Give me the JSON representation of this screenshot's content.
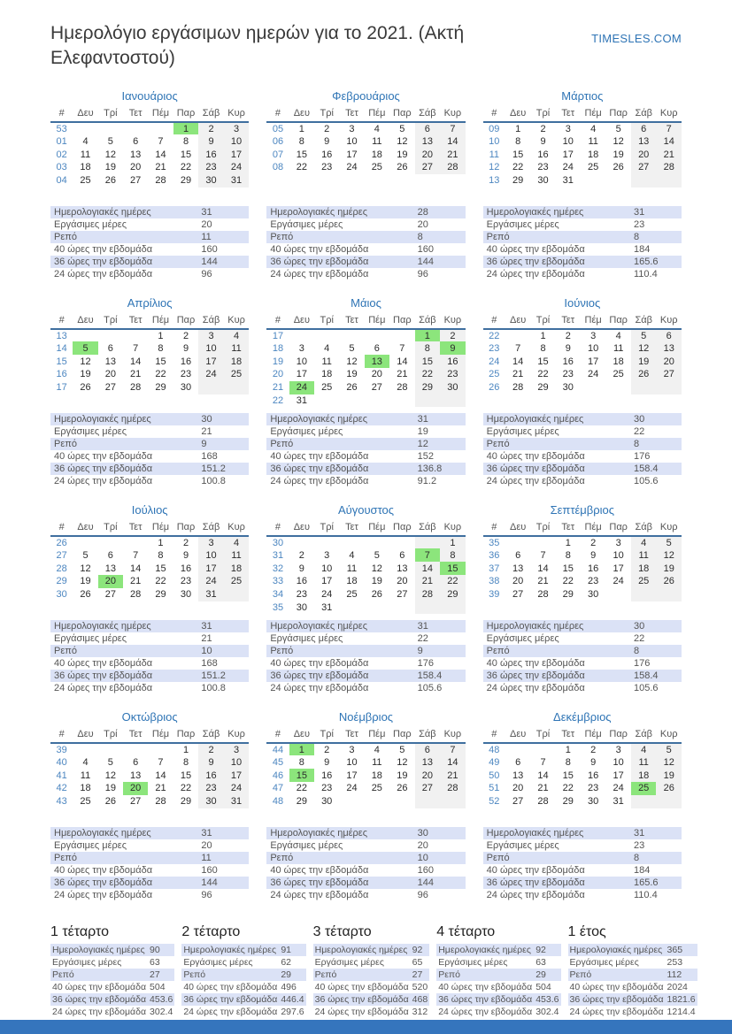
{
  "page": {
    "title": "Ημερολόγιο εργάσιμων ημερών για το 2021. (Ακτή Ελεφαντοστού)",
    "site": "TIMESLES.COM"
  },
  "weekday_headers": [
    "#",
    "Δευ",
    "Τρί",
    "Τετ",
    "Πέμ",
    "Παρ",
    "Σάβ",
    "Κυρ"
  ],
  "stat_labels": [
    "Ημερολογιακές ημέρες",
    "Εργάσιμες μέρες",
    "Ρεπό",
    "40 ώρες την εβδομάδα",
    "36 ώρες την εβδομάδα",
    "24 ώρες την εβδομάδα"
  ],
  "colors": {
    "accent_blue": "#2e74b5",
    "holiday_green": "#8ce57c",
    "weekend_gray": "#f1f1f1",
    "stat_row_blue": "#dbe2f6",
    "footer_blue": "#3575bd"
  },
  "months": [
    {
      "name": "Ιανουάριος",
      "holidays": [
        1
      ],
      "weeks": [
        {
          "n": "53",
          "d": [
            "",
            "",
            "",
            "",
            "1",
            "2",
            "3"
          ]
        },
        {
          "n": "01",
          "d": [
            "4",
            "5",
            "6",
            "7",
            "8",
            "9",
            "10"
          ]
        },
        {
          "n": "02",
          "d": [
            "11",
            "12",
            "13",
            "14",
            "15",
            "16",
            "17"
          ]
        },
        {
          "n": "03",
          "d": [
            "18",
            "19",
            "20",
            "21",
            "22",
            "23",
            "24"
          ]
        },
        {
          "n": "04",
          "d": [
            "25",
            "26",
            "27",
            "28",
            "29",
            "30",
            "31"
          ]
        }
      ],
      "stats": [
        "31",
        "20",
        "11",
        "160",
        "144",
        "96"
      ]
    },
    {
      "name": "Φεβρουάριος",
      "holidays": [],
      "weeks": [
        {
          "n": "05",
          "d": [
            "1",
            "2",
            "3",
            "4",
            "5",
            "6",
            "7"
          ]
        },
        {
          "n": "06",
          "d": [
            "8",
            "9",
            "10",
            "11",
            "12",
            "13",
            "14"
          ]
        },
        {
          "n": "07",
          "d": [
            "15",
            "16",
            "17",
            "18",
            "19",
            "20",
            "21"
          ]
        },
        {
          "n": "08",
          "d": [
            "22",
            "23",
            "24",
            "25",
            "26",
            "27",
            "28"
          ]
        }
      ],
      "stats": [
        "28",
        "20",
        "8",
        "160",
        "144",
        "96"
      ]
    },
    {
      "name": "Μάρτιος",
      "holidays": [],
      "weeks": [
        {
          "n": "09",
          "d": [
            "1",
            "2",
            "3",
            "4",
            "5",
            "6",
            "7"
          ]
        },
        {
          "n": "10",
          "d": [
            "8",
            "9",
            "10",
            "11",
            "12",
            "13",
            "14"
          ]
        },
        {
          "n": "11",
          "d": [
            "15",
            "16",
            "17",
            "18",
            "19",
            "20",
            "21"
          ]
        },
        {
          "n": "12",
          "d": [
            "22",
            "23",
            "24",
            "25",
            "26",
            "27",
            "28"
          ]
        },
        {
          "n": "13",
          "d": [
            "29",
            "30",
            "31",
            "",
            "",
            "",
            ""
          ]
        }
      ],
      "stats": [
        "31",
        "23",
        "8",
        "184",
        "165.6",
        "110.4"
      ]
    },
    {
      "name": "Απρίλιος",
      "holidays": [
        5
      ],
      "weeks": [
        {
          "n": "13",
          "d": [
            "",
            "",
            "",
            "1",
            "2",
            "3",
            "4"
          ]
        },
        {
          "n": "14",
          "d": [
            "5",
            "6",
            "7",
            "8",
            "9",
            "10",
            "11"
          ]
        },
        {
          "n": "15",
          "d": [
            "12",
            "13",
            "14",
            "15",
            "16",
            "17",
            "18"
          ]
        },
        {
          "n": "16",
          "d": [
            "19",
            "20",
            "21",
            "22",
            "23",
            "24",
            "25"
          ]
        },
        {
          "n": "17",
          "d": [
            "26",
            "27",
            "28",
            "29",
            "30",
            "",
            ""
          ]
        }
      ],
      "stats": [
        "30",
        "21",
        "9",
        "168",
        "151.2",
        "100.8"
      ]
    },
    {
      "name": "Μάιος",
      "holidays": [
        1,
        9,
        13,
        24
      ],
      "weeks": [
        {
          "n": "17",
          "d": [
            "",
            "",
            "",
            "",
            "",
            "1",
            "2"
          ]
        },
        {
          "n": "18",
          "d": [
            "3",
            "4",
            "5",
            "6",
            "7",
            "8",
            "9"
          ]
        },
        {
          "n": "19",
          "d": [
            "10",
            "11",
            "12",
            "13",
            "14",
            "15",
            "16"
          ]
        },
        {
          "n": "20",
          "d": [
            "17",
            "18",
            "19",
            "20",
            "21",
            "22",
            "23"
          ]
        },
        {
          "n": "21",
          "d": [
            "24",
            "25",
            "26",
            "27",
            "28",
            "29",
            "30"
          ]
        },
        {
          "n": "22",
          "d": [
            "31",
            "",
            "",
            "",
            "",
            "",
            ""
          ]
        }
      ],
      "stats": [
        "31",
        "19",
        "12",
        "152",
        "136.8",
        "91.2"
      ]
    },
    {
      "name": "Ιούνιος",
      "holidays": [],
      "weeks": [
        {
          "n": "22",
          "d": [
            "",
            "1",
            "2",
            "3",
            "4",
            "5",
            "6"
          ]
        },
        {
          "n": "23",
          "d": [
            "7",
            "8",
            "9",
            "10",
            "11",
            "12",
            "13"
          ]
        },
        {
          "n": "24",
          "d": [
            "14",
            "15",
            "16",
            "17",
            "18",
            "19",
            "20"
          ]
        },
        {
          "n": "25",
          "d": [
            "21",
            "22",
            "23",
            "24",
            "25",
            "26",
            "27"
          ]
        },
        {
          "n": "26",
          "d": [
            "28",
            "29",
            "30",
            "",
            "",
            "",
            ""
          ]
        }
      ],
      "stats": [
        "30",
        "22",
        "8",
        "176",
        "158.4",
        "105.6"
      ]
    },
    {
      "name": "Ιούλιος",
      "holidays": [
        20
      ],
      "weeks": [
        {
          "n": "26",
          "d": [
            "",
            "",
            "",
            "1",
            "2",
            "3",
            "4"
          ]
        },
        {
          "n": "27",
          "d": [
            "5",
            "6",
            "7",
            "8",
            "9",
            "10",
            "11"
          ]
        },
        {
          "n": "28",
          "d": [
            "12",
            "13",
            "14",
            "15",
            "16",
            "17",
            "18"
          ]
        },
        {
          "n": "29",
          "d": [
            "19",
            "20",
            "21",
            "22",
            "23",
            "24",
            "25"
          ]
        },
        {
          "n": "30",
          "d": [
            "26",
            "27",
            "28",
            "29",
            "30",
            "31",
            ""
          ]
        }
      ],
      "stats": [
        "31",
        "21",
        "10",
        "168",
        "151.2",
        "100.8"
      ]
    },
    {
      "name": "Αύγουστος",
      "holidays": [
        7,
        15
      ],
      "weeks": [
        {
          "n": "30",
          "d": [
            "",
            "",
            "",
            "",
            "",
            "",
            "1"
          ]
        },
        {
          "n": "31",
          "d": [
            "2",
            "3",
            "4",
            "5",
            "6",
            "7",
            "8"
          ]
        },
        {
          "n": "32",
          "d": [
            "9",
            "10",
            "11",
            "12",
            "13",
            "14",
            "15"
          ]
        },
        {
          "n": "33",
          "d": [
            "16",
            "17",
            "18",
            "19",
            "20",
            "21",
            "22"
          ]
        },
        {
          "n": "34",
          "d": [
            "23",
            "24",
            "25",
            "26",
            "27",
            "28",
            "29"
          ]
        },
        {
          "n": "35",
          "d": [
            "30",
            "31",
            "",
            "",
            "",
            "",
            ""
          ]
        }
      ],
      "stats": [
        "31",
        "22",
        "9",
        "176",
        "158.4",
        "105.6"
      ]
    },
    {
      "name": "Σεπτέμβριος",
      "holidays": [],
      "weeks": [
        {
          "n": "35",
          "d": [
            "",
            "",
            "1",
            "2",
            "3",
            "4",
            "5"
          ]
        },
        {
          "n": "36",
          "d": [
            "6",
            "7",
            "8",
            "9",
            "10",
            "11",
            "12"
          ]
        },
        {
          "n": "37",
          "d": [
            "13",
            "14",
            "15",
            "16",
            "17",
            "18",
            "19"
          ]
        },
        {
          "n": "38",
          "d": [
            "20",
            "21",
            "22",
            "23",
            "24",
            "25",
            "26"
          ]
        },
        {
          "n": "39",
          "d": [
            "27",
            "28",
            "29",
            "30",
            "",
            "",
            ""
          ]
        }
      ],
      "stats": [
        "30",
        "22",
        "8",
        "176",
        "158.4",
        "105.6"
      ]
    },
    {
      "name": "Οκτώβριος",
      "holidays": [
        20
      ],
      "weeks": [
        {
          "n": "39",
          "d": [
            "",
            "",
            "",
            "",
            "1",
            "2",
            "3"
          ]
        },
        {
          "n": "40",
          "d": [
            "4",
            "5",
            "6",
            "7",
            "8",
            "9",
            "10"
          ]
        },
        {
          "n": "41",
          "d": [
            "11",
            "12",
            "13",
            "14",
            "15",
            "16",
            "17"
          ]
        },
        {
          "n": "42",
          "d": [
            "18",
            "19",
            "20",
            "21",
            "22",
            "23",
            "24"
          ]
        },
        {
          "n": "43",
          "d": [
            "25",
            "26",
            "27",
            "28",
            "29",
            "30",
            "31"
          ]
        }
      ],
      "stats": [
        "31",
        "20",
        "11",
        "160",
        "144",
        "96"
      ]
    },
    {
      "name": "Νοέμβριος",
      "holidays": [
        1,
        15
      ],
      "weeks": [
        {
          "n": "44",
          "d": [
            "1",
            "2",
            "3",
            "4",
            "5",
            "6",
            "7"
          ]
        },
        {
          "n": "45",
          "d": [
            "8",
            "9",
            "10",
            "11",
            "12",
            "13",
            "14"
          ]
        },
        {
          "n": "46",
          "d": [
            "15",
            "16",
            "17",
            "18",
            "19",
            "20",
            "21"
          ]
        },
        {
          "n": "47",
          "d": [
            "22",
            "23",
            "24",
            "25",
            "26",
            "27",
            "28"
          ]
        },
        {
          "n": "48",
          "d": [
            "29",
            "30",
            "",
            "",
            "",
            "",
            ""
          ]
        }
      ],
      "stats": [
        "30",
        "20",
        "10",
        "160",
        "144",
        "96"
      ]
    },
    {
      "name": "Δεκέμβριος",
      "holidays": [
        25
      ],
      "weeks": [
        {
          "n": "48",
          "d": [
            "",
            "",
            "1",
            "2",
            "3",
            "4",
            "5"
          ]
        },
        {
          "n": "49",
          "d": [
            "6",
            "7",
            "8",
            "9",
            "10",
            "11",
            "12"
          ]
        },
        {
          "n": "50",
          "d": [
            "13",
            "14",
            "15",
            "16",
            "17",
            "18",
            "19"
          ]
        },
        {
          "n": "51",
          "d": [
            "20",
            "21",
            "22",
            "23",
            "24",
            "25",
            "26"
          ]
        },
        {
          "n": "52",
          "d": [
            "27",
            "28",
            "29",
            "30",
            "31",
            "",
            ""
          ]
        }
      ],
      "stats": [
        "31",
        "23",
        "8",
        "184",
        "165.6",
        "110.4"
      ]
    }
  ],
  "summaries": [
    {
      "name": "1 τέταρτο",
      "stats": [
        "90",
        "63",
        "27",
        "504",
        "453.6",
        "302.4"
      ]
    },
    {
      "name": "2 τέταρτο",
      "stats": [
        "91",
        "62",
        "29",
        "496",
        "446.4",
        "297.6"
      ]
    },
    {
      "name": "3 τέταρτο",
      "stats": [
        "92",
        "65",
        "27",
        "520",
        "468",
        "312"
      ]
    },
    {
      "name": "4 τέταρτο",
      "stats": [
        "92",
        "63",
        "29",
        "504",
        "453.6",
        "302.4"
      ]
    },
    {
      "name": "1 έτος",
      "stats": [
        "365",
        "253",
        "112",
        "2024",
        "1821.6",
        "1214.4"
      ]
    }
  ]
}
